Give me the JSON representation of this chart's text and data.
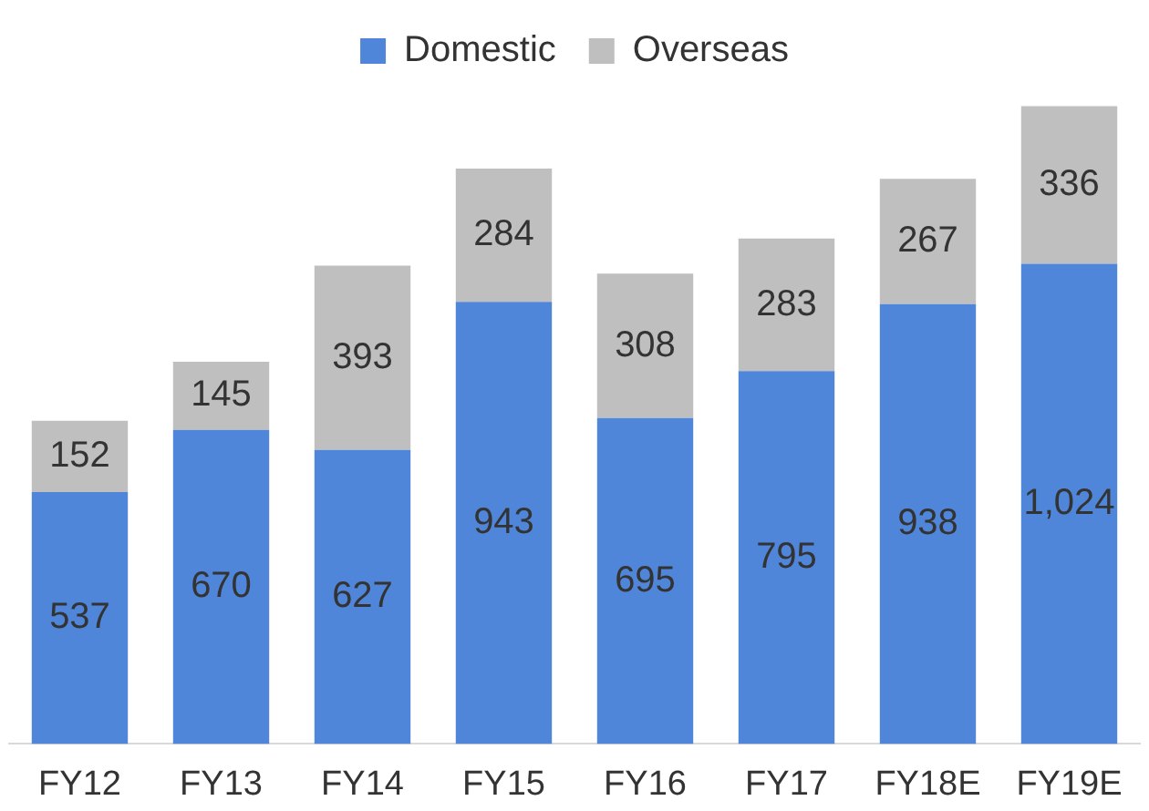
{
  "chart_data": {
    "type": "bar",
    "stacked": true,
    "legend": "top",
    "categories": [
      "FY12",
      "FY13",
      "FY14",
      "FY15",
      "FY16",
      "FY17",
      "FY18E",
      "FY19E"
    ],
    "series": [
      {
        "name": "Domestic",
        "color": "#4f86d9",
        "values": [
          537,
          670,
          627,
          943,
          695,
          795,
          938,
          1024
        ],
        "value_labels": [
          "537",
          "670",
          "627",
          "943",
          "695",
          "795",
          "938",
          "1,024"
        ]
      },
      {
        "name": "Overseas",
        "color": "#bfbfbf",
        "values": [
          152,
          145,
          393,
          284,
          308,
          283,
          267,
          336
        ],
        "value_labels": [
          "152",
          "145",
          "393",
          "284",
          "308",
          "283",
          "267",
          "336"
        ]
      }
    ]
  }
}
